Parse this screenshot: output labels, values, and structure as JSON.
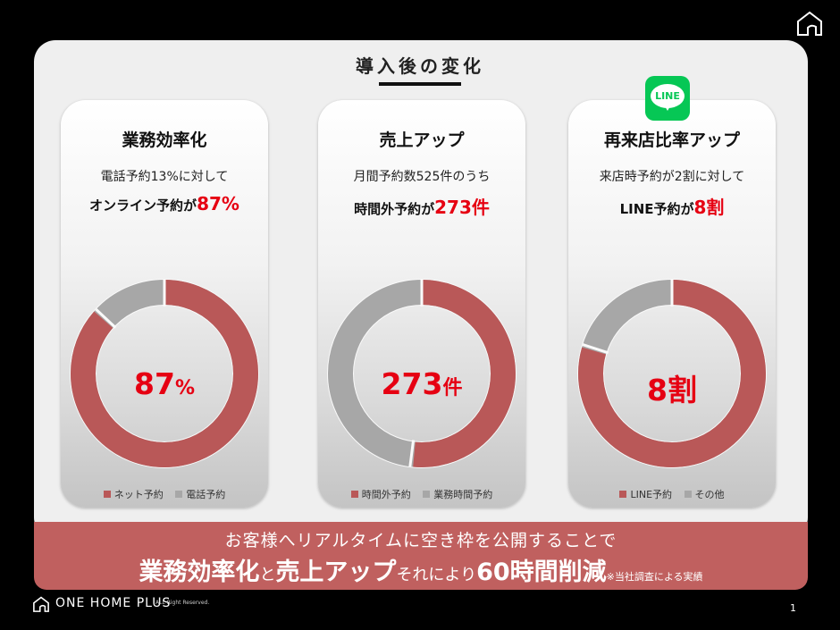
{
  "slide": {
    "title": "導入後の変化",
    "page_number": "1",
    "colors": {
      "red_accent": "#e60012",
      "donut_red": "#b95858",
      "donut_gray": "#a7a7a7",
      "banner": "#c0605f",
      "line_green": "#06c755"
    }
  },
  "cards": [
    {
      "heading": "業務効率化",
      "line1": "電話予約13%に対して",
      "line2_prefix": "オンライン予約が",
      "line2_value": "87%",
      "center_value": "87",
      "center_unit": "%",
      "legend": [
        "ネット予約",
        "電話予約"
      ],
      "red_share": 0.87
    },
    {
      "heading": "売上アップ",
      "line1": "月間予約数525件のうち",
      "line2_prefix": "時間外予約が",
      "line2_value": "273件",
      "center_value": "273",
      "center_unit": "件",
      "legend": [
        "時間外予約",
        "業務時間予約"
      ],
      "red_share": 0.52
    },
    {
      "heading": "再来店比率アップ",
      "line1": "来店時予約が2割に対して",
      "line2_prefix": "LINE予約が",
      "line2_value": "8割",
      "center_value": "8割",
      "center_unit": "",
      "legend": [
        "LINE予約",
        "その他"
      ],
      "red_share": 0.8
    }
  ],
  "line_badge": {
    "label": "LINE",
    "icon": "line-app-icon"
  },
  "banner": {
    "line1": "お客様へリアルタイムに空き枠を公開することで",
    "part1": "業務効率化",
    "part2": "と",
    "part3": "売上アップ",
    "part4": "それにより",
    "part5": "60時間削減",
    "note": "※当社調査による実績"
  },
  "footer": {
    "brand": "ONE HOME PLUS",
    "rights": "ALL Right Reserved.",
    "icon": "house-logo-icon"
  }
}
